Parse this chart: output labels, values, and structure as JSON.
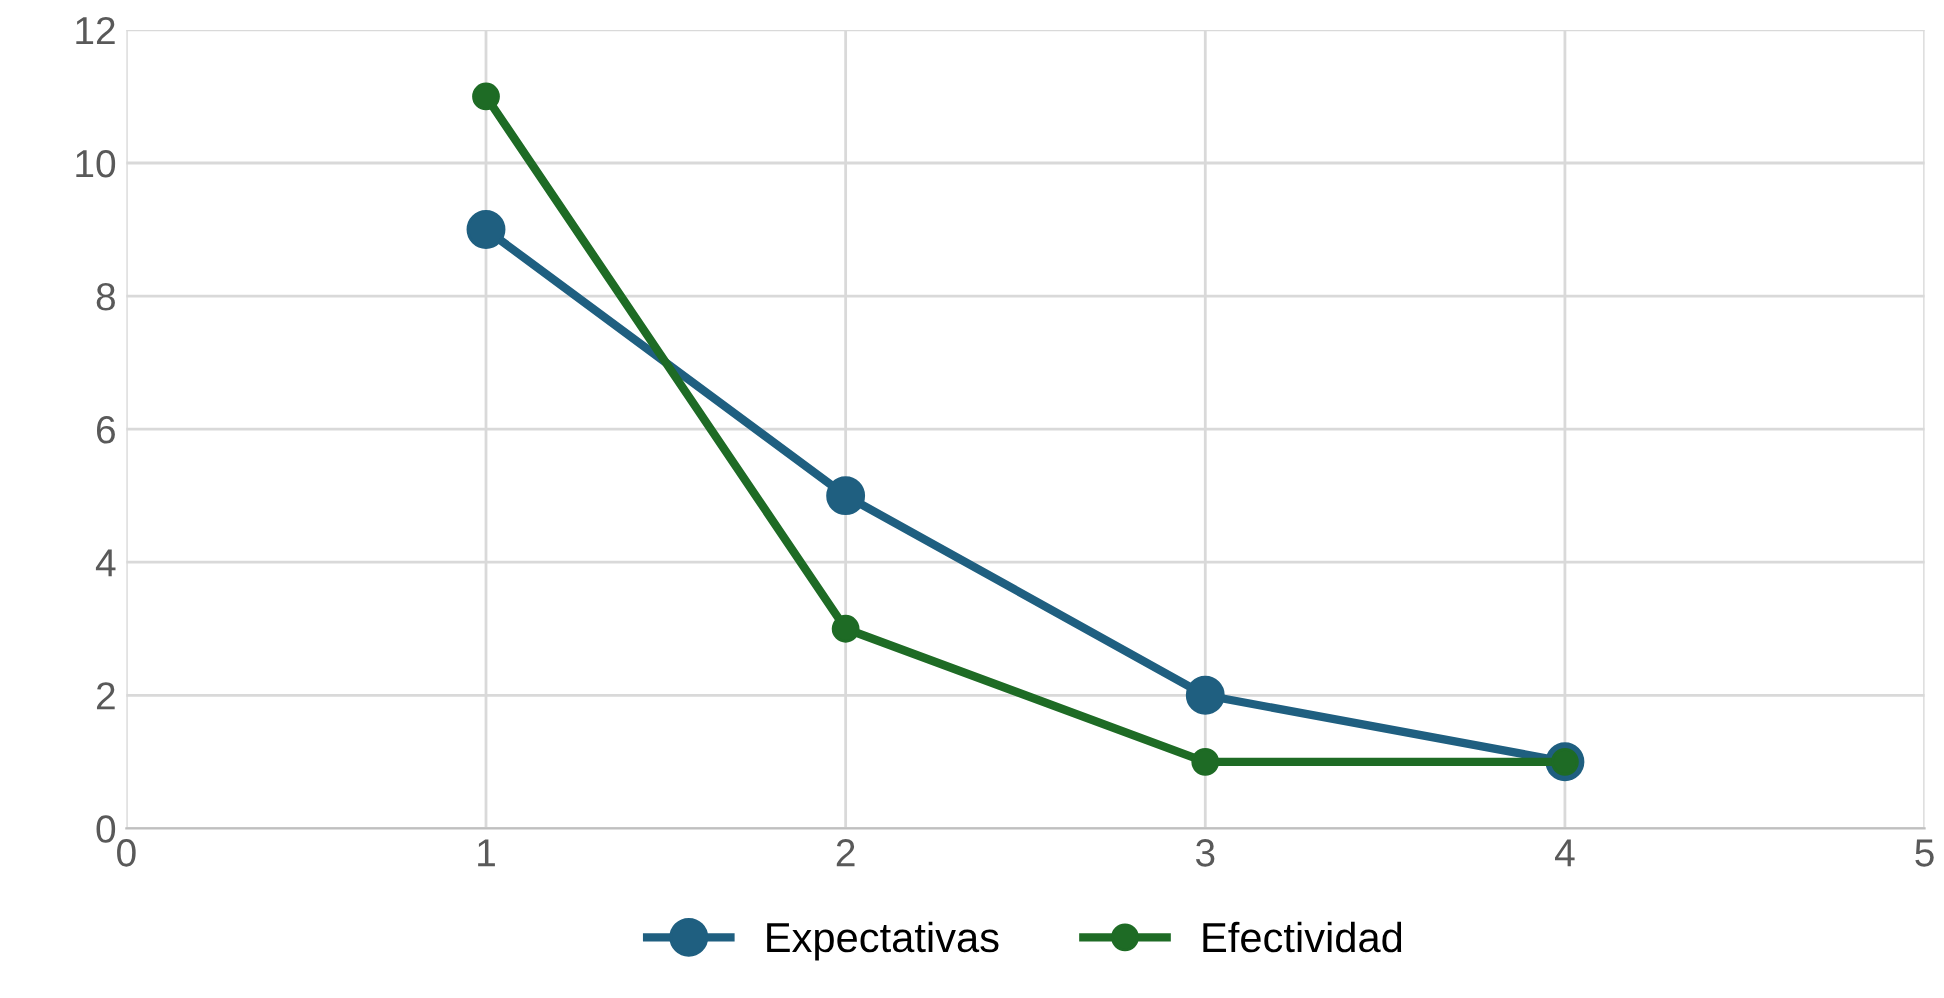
{
  "chart_data": {
    "type": "line",
    "x": [
      1,
      2,
      3,
      4
    ],
    "series": [
      {
        "name": "Expectativas",
        "color": "#1f5f80",
        "values": [
          9,
          5,
          2,
          1
        ]
      },
      {
        "name": "Efectividad",
        "color": "#1e6b25",
        "values": [
          11,
          3,
          1,
          1
        ]
      }
    ],
    "xlim": [
      0,
      5
    ],
    "xticks": [
      0,
      1,
      2,
      3,
      4,
      5
    ],
    "ylim": [
      0,
      12
    ],
    "yticks": [
      0,
      2,
      4,
      6,
      8,
      10,
      12
    ],
    "grid": true,
    "legend": "bottom",
    "marker": "circle",
    "line_style": "solid"
  }
}
